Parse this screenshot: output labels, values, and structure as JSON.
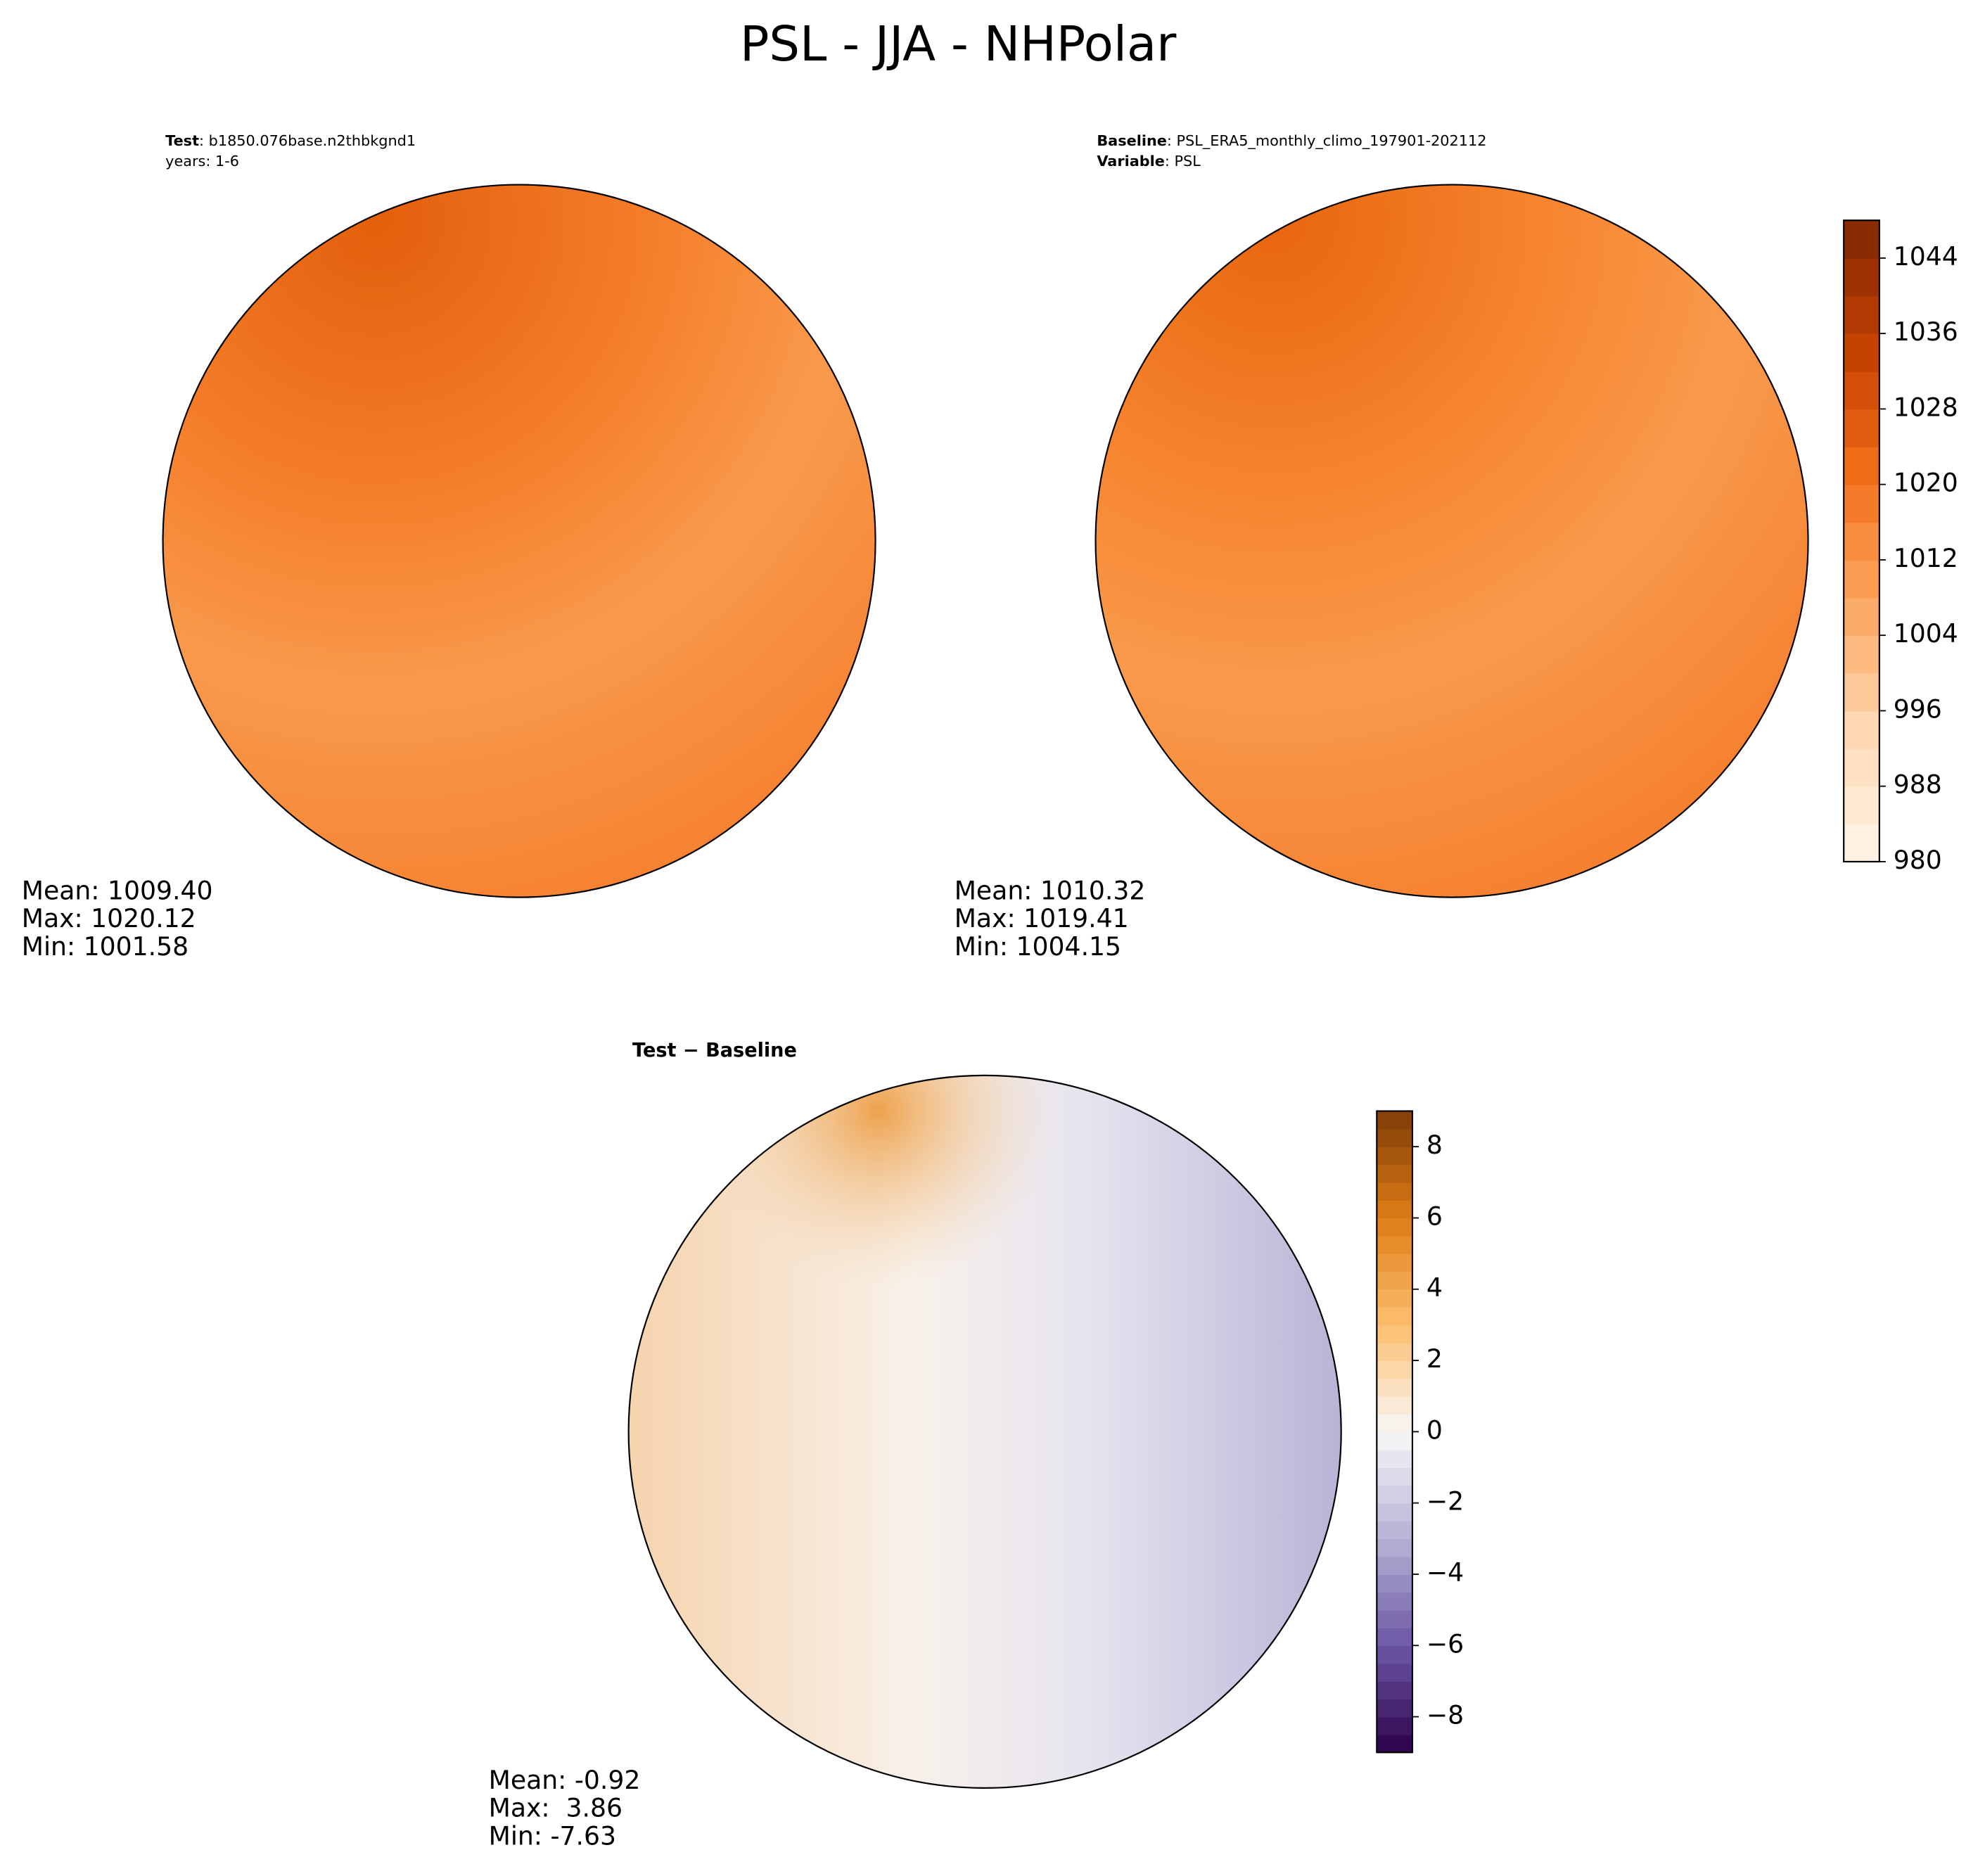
{
  "title": "PSL - JJA - NHPolar",
  "panels": [
    {
      "header": [
        {
          "label": "Test",
          "value": ": b1850.076base.n2thbkgnd1"
        }
      ],
      "subheader": "years: 1-6",
      "stats": [
        "Mean: 1009.40",
        "Max: 1020.12",
        "Min: 1001.58"
      ]
    },
    {
      "header": [
        {
          "label": "Baseline",
          "value": ": PSL_ERA5_monthly_climo_197901-202112"
        },
        {
          "label": "Variable",
          "value": ": PSL"
        }
      ],
      "stats": [
        "Mean: 1010.32",
        "Max: 1019.41",
        "Min: 1004.15"
      ]
    },
    {
      "title": "Test − Baseline",
      "stats": [
        "Mean: -0.92",
        "Max:  3.86",
        "Min: -7.63"
      ]
    }
  ],
  "colorbars": [
    {
      "lim": [
        980,
        1048
      ],
      "step": 4,
      "ticks": [
        980,
        988,
        996,
        1004,
        1012,
        1020,
        1028,
        1036,
        1044
      ],
      "colors": [
        "#fff5eb",
        "#fdd9b4",
        "#fda762",
        "#f3701b",
        "#c54102",
        "#7f2704"
      ]
    },
    {
      "lim": [
        -9,
        9
      ],
      "step": 0.5,
      "ticks": [
        {
          "value": -8,
          "label": "−8"
        },
        {
          "value": -6,
          "label": "−6"
        },
        {
          "value": -4,
          "label": "−4"
        },
        {
          "value": -2,
          "label": "−2"
        },
        0,
        2,
        4,
        6,
        8
      ],
      "colors": [
        "#2d004b",
        "#6b58a5",
        "#b7b1d5",
        "#f7f7f7",
        "#fdbf6f",
        "#de7e14",
        "#7f3b08"
      ]
    }
  ]
}
